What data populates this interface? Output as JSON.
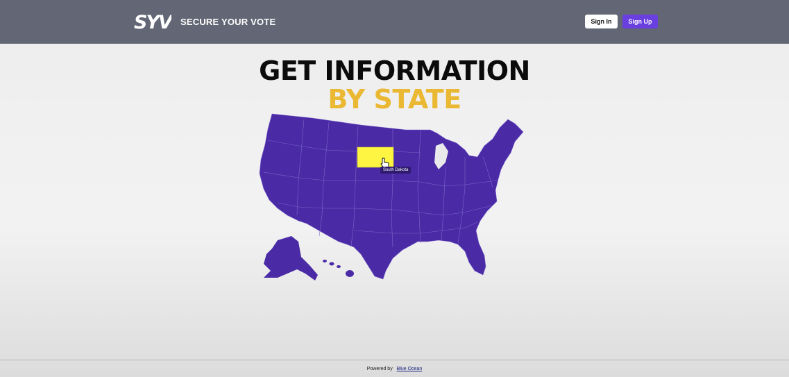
{
  "header": {
    "logo_text": "SYV",
    "brand": "SECURE YOUR VOTE",
    "signin_label": "Sign In",
    "signup_label": "Sign Up"
  },
  "hero": {
    "line1": "GET INFORMATION",
    "line2": "BY STATE"
  },
  "map": {
    "hovered_state": "South Dakota",
    "tooltip": "South Dakota"
  },
  "footer": {
    "powered_by": "Powered by",
    "company": "Blue Ocean"
  },
  "colors": {
    "navbar": "#636775",
    "accent": "#6a3fe0",
    "state_fill": "#4a2aa5",
    "state_hover": "#fdf542",
    "title_accent": "#eab832"
  }
}
